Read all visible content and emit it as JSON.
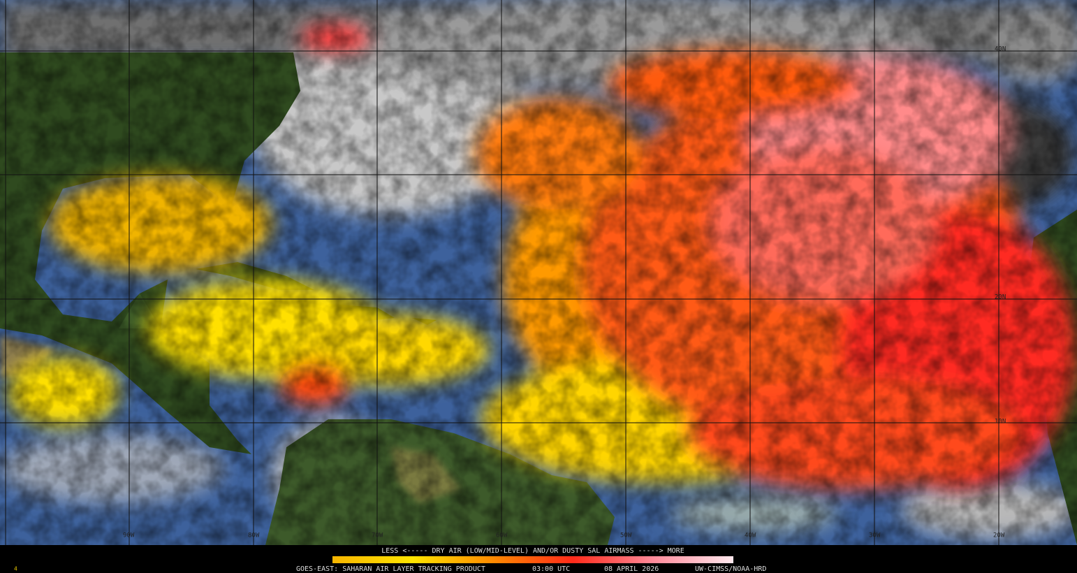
{
  "map": {
    "frame": "4",
    "longitude_labels": [
      "90W",
      "80W",
      "70W",
      "60W",
      "50W",
      "40W",
      "30W",
      "20W"
    ],
    "latitude_labels": [
      "40N",
      "20N",
      "10N"
    ],
    "legend": {
      "caption": "LESS <----- DRY AIR (LOW/MID-LEVEL) AND/OR DUSTY SAL AIRMASS -----> MORE",
      "product": "GOES-EAST: SAHARAN AIR LAYER TRACKING PRODUCT",
      "time": "03:00 UTC",
      "date": "08 APRIL 2026",
      "credit": "UW-CIMSS/NOAA-HRD"
    }
  }
}
